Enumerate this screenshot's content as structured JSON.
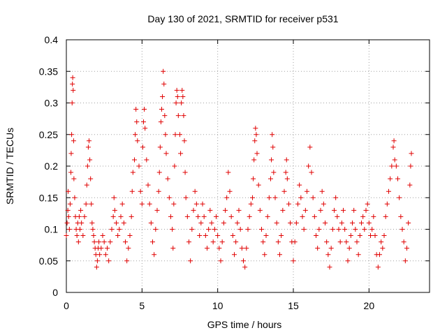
{
  "chart_data": {
    "type": "scatter",
    "title": "Day 130 of 2021, SRMTID for receiver p531",
    "xlabel": "GPS time / hours",
    "ylabel": "SRMTID / TECUs",
    "xlim": [
      0,
      24
    ],
    "ylim": [
      0,
      0.4
    ],
    "xticks": [
      0,
      5,
      10,
      15,
      20
    ],
    "yticks": [
      0,
      0.05,
      0.1,
      0.15,
      0.2,
      0.25,
      0.3,
      0.35,
      0.4
    ],
    "xtick_labels": [
      "0",
      "5",
      "10",
      "15",
      "20"
    ],
    "ytick_labels": [
      "0",
      "0.05",
      "0.1",
      "0.15",
      "0.2",
      "0.25",
      "0.3",
      "0.35",
      "0.4"
    ],
    "grid": true,
    "marker": "+",
    "color": "#e00000",
    "series": [
      {
        "name": "SRMTID",
        "points": [
          [
            0.0,
            0.09
          ],
          [
            0.05,
            0.11
          ],
          [
            0.1,
            0.13
          ],
          [
            0.12,
            0.16
          ],
          [
            0.15,
            0.12
          ],
          [
            0.2,
            0.1
          ],
          [
            0.25,
            0.14
          ],
          [
            0.3,
            0.19
          ],
          [
            0.32,
            0.22
          ],
          [
            0.35,
            0.25
          ],
          [
            0.38,
            0.3
          ],
          [
            0.4,
            0.33
          ],
          [
            0.42,
            0.34
          ],
          [
            0.45,
            0.32
          ],
          [
            0.48,
            0.24
          ],
          [
            0.5,
            0.18
          ],
          [
            0.55,
            0.15
          ],
          [
            0.6,
            0.12
          ],
          [
            0.65,
            0.1
          ],
          [
            0.7,
            0.09
          ],
          [
            0.75,
            0.11
          ],
          [
            0.8,
            0.08
          ],
          [
            0.85,
            0.12
          ],
          [
            0.9,
            0.1
          ],
          [
            0.95,
            0.13
          ],
          [
            1.0,
            0.11
          ],
          [
            1.1,
            0.09
          ],
          [
            1.2,
            0.12
          ],
          [
            1.3,
            0.14
          ],
          [
            1.35,
            0.17
          ],
          [
            1.4,
            0.2
          ],
          [
            1.45,
            0.23
          ],
          [
            1.5,
            0.24
          ],
          [
            1.55,
            0.21
          ],
          [
            1.6,
            0.18
          ],
          [
            1.65,
            0.14
          ],
          [
            1.7,
            0.11
          ],
          [
            1.75,
            0.1
          ],
          [
            1.8,
            0.09
          ],
          [
            1.85,
            0.08
          ],
          [
            1.9,
            0.07
          ],
          [
            1.95,
            0.06
          ],
          [
            2.0,
            0.04
          ],
          [
            2.05,
            0.05
          ],
          [
            2.1,
            0.07
          ],
          [
            2.15,
            0.08
          ],
          [
            2.2,
            0.06
          ],
          [
            2.3,
            0.07
          ],
          [
            2.4,
            0.09
          ],
          [
            2.5,
            0.08
          ],
          [
            2.6,
            0.06
          ],
          [
            2.7,
            0.07
          ],
          [
            2.8,
            0.05
          ],
          [
            2.9,
            0.08
          ],
          [
            3.0,
            0.1
          ],
          [
            3.1,
            0.12
          ],
          [
            3.15,
            0.15
          ],
          [
            3.2,
            0.13
          ],
          [
            3.3,
            0.11
          ],
          [
            3.4,
            0.09
          ],
          [
            3.5,
            0.1
          ],
          [
            3.6,
            0.12
          ],
          [
            3.7,
            0.14
          ],
          [
            3.8,
            0.11
          ],
          [
            3.9,
            0.08
          ],
          [
            4.0,
            0.05
          ],
          [
            4.1,
            0.07
          ],
          [
            4.2,
            0.09
          ],
          [
            4.3,
            0.12
          ],
          [
            4.35,
            0.16
          ],
          [
            4.4,
            0.19
          ],
          [
            4.5,
            0.21
          ],
          [
            4.55,
            0.25
          ],
          [
            4.6,
            0.29
          ],
          [
            4.65,
            0.27
          ],
          [
            4.7,
            0.24
          ],
          [
            4.8,
            0.2
          ],
          [
            4.9,
            0.16
          ],
          [
            5.0,
            0.14
          ],
          [
            5.05,
            0.23
          ],
          [
            5.1,
            0.27
          ],
          [
            5.15,
            0.29
          ],
          [
            5.2,
            0.26
          ],
          [
            5.3,
            0.21
          ],
          [
            5.4,
            0.17
          ],
          [
            5.5,
            0.14
          ],
          [
            5.6,
            0.11
          ],
          [
            5.7,
            0.08
          ],
          [
            5.8,
            0.06
          ],
          [
            5.9,
            0.1
          ],
          [
            6.0,
            0.13
          ],
          [
            6.1,
            0.16
          ],
          [
            6.15,
            0.19
          ],
          [
            6.2,
            0.23
          ],
          [
            6.25,
            0.27
          ],
          [
            6.3,
            0.29
          ],
          [
            6.35,
            0.31
          ],
          [
            6.4,
            0.35
          ],
          [
            6.45,
            0.33
          ],
          [
            6.5,
            0.28
          ],
          [
            6.55,
            0.25
          ],
          [
            6.6,
            0.22
          ],
          [
            6.7,
            0.18
          ],
          [
            6.8,
            0.15
          ],
          [
            6.9,
            0.12
          ],
          [
            7.0,
            0.1
          ],
          [
            7.05,
            0.07
          ],
          [
            7.1,
            0.14
          ],
          [
            7.15,
            0.2
          ],
          [
            7.2,
            0.25
          ],
          [
            7.25,
            0.3
          ],
          [
            7.3,
            0.32
          ],
          [
            7.35,
            0.31
          ],
          [
            7.4,
            0.28
          ],
          [
            7.5,
            0.25
          ],
          [
            7.55,
            0.22
          ],
          [
            7.6,
            0.3
          ],
          [
            7.65,
            0.32
          ],
          [
            7.7,
            0.31
          ],
          [
            7.75,
            0.28
          ],
          [
            7.8,
            0.24
          ],
          [
            7.85,
            0.19
          ],
          [
            7.9,
            0.15
          ],
          [
            8.0,
            0.12
          ],
          [
            8.1,
            0.08
          ],
          [
            8.2,
            0.05
          ],
          [
            8.3,
            0.1
          ],
          [
            8.4,
            0.13
          ],
          [
            8.5,
            0.16
          ],
          [
            8.6,
            0.14
          ],
          [
            8.7,
            0.12
          ],
          [
            8.8,
            0.09
          ],
          [
            8.9,
            0.11
          ],
          [
            9.0,
            0.14
          ],
          [
            9.1,
            0.12
          ],
          [
            9.2,
            0.09
          ],
          [
            9.3,
            0.07
          ],
          [
            9.4,
            0.1
          ],
          [
            9.5,
            0.13
          ],
          [
            9.6,
            0.11
          ],
          [
            9.7,
            0.08
          ],
          [
            9.8,
            0.1
          ],
          [
            9.9,
            0.12
          ],
          [
            10.0,
            0.09
          ],
          [
            10.1,
            0.07
          ],
          [
            10.2,
            0.05
          ],
          [
            10.3,
            0.08
          ],
          [
            10.4,
            0.11
          ],
          [
            10.5,
            0.13
          ],
          [
            10.6,
            0.15
          ],
          [
            10.7,
            0.19
          ],
          [
            10.8,
            0.16
          ],
          [
            10.9,
            0.12
          ],
          [
            11.0,
            0.09
          ],
          [
            11.1,
            0.06
          ],
          [
            11.2,
            0.08
          ],
          [
            11.3,
            0.11
          ],
          [
            11.4,
            0.13
          ],
          [
            11.5,
            0.1
          ],
          [
            11.6,
            0.07
          ],
          [
            11.7,
            0.05
          ],
          [
            11.8,
            0.04
          ],
          [
            11.9,
            0.07
          ],
          [
            12.0,
            0.1
          ],
          [
            12.1,
            0.12
          ],
          [
            12.2,
            0.14
          ],
          [
            12.3,
            0.15
          ],
          [
            12.35,
            0.18
          ],
          [
            12.4,
            0.21
          ],
          [
            12.45,
            0.24
          ],
          [
            12.5,
            0.26
          ],
          [
            12.55,
            0.25
          ],
          [
            12.6,
            0.22
          ],
          [
            12.7,
            0.17
          ],
          [
            12.8,
            0.13
          ],
          [
            12.9,
            0.1
          ],
          [
            13.0,
            0.08
          ],
          [
            13.1,
            0.06
          ],
          [
            13.2,
            0.09
          ],
          [
            13.3,
            0.12
          ],
          [
            13.4,
            0.15
          ],
          [
            13.5,
            0.18
          ],
          [
            13.55,
            0.21
          ],
          [
            13.6,
            0.25
          ],
          [
            13.65,
            0.23
          ],
          [
            13.7,
            0.19
          ],
          [
            13.8,
            0.15
          ],
          [
            13.9,
            0.11
          ],
          [
            14.0,
            0.08
          ],
          [
            14.1,
            0.06
          ],
          [
            14.2,
            0.09
          ],
          [
            14.3,
            0.13
          ],
          [
            14.4,
            0.16
          ],
          [
            14.5,
            0.19
          ],
          [
            14.55,
            0.21
          ],
          [
            14.6,
            0.18
          ],
          [
            14.7,
            0.14
          ],
          [
            14.8,
            0.11
          ],
          [
            14.9,
            0.08
          ],
          [
            15.0,
            0.05
          ],
          [
            15.1,
            0.08
          ],
          [
            15.2,
            0.11
          ],
          [
            15.3,
            0.14
          ],
          [
            15.4,
            0.17
          ],
          [
            15.5,
            0.15
          ],
          [
            15.6,
            0.12
          ],
          [
            15.7,
            0.1
          ],
          [
            15.8,
            0.13
          ],
          [
            15.9,
            0.16
          ],
          [
            16.0,
            0.2
          ],
          [
            16.1,
            0.23
          ],
          [
            16.2,
            0.19
          ],
          [
            16.3,
            0.15
          ],
          [
            16.4,
            0.12
          ],
          [
            16.5,
            0.09
          ],
          [
            16.6,
            0.07
          ],
          [
            16.7,
            0.1
          ],
          [
            16.8,
            0.13
          ],
          [
            16.9,
            0.16
          ],
          [
            17.0,
            0.14
          ],
          [
            17.1,
            0.11
          ],
          [
            17.2,
            0.08
          ],
          [
            17.3,
            0.06
          ],
          [
            17.4,
            0.04
          ],
          [
            17.5,
            0.07
          ],
          [
            17.6,
            0.1
          ],
          [
            17.7,
            0.13
          ],
          [
            17.8,
            0.15
          ],
          [
            17.9,
            0.12
          ],
          [
            18.0,
            0.1
          ],
          [
            18.1,
            0.08
          ],
          [
            18.2,
            0.11
          ],
          [
            18.3,
            0.13
          ],
          [
            18.4,
            0.1
          ],
          [
            18.5,
            0.08
          ],
          [
            18.6,
            0.05
          ],
          [
            18.7,
            0.07
          ],
          [
            18.8,
            0.09
          ],
          [
            18.9,
            0.11
          ],
          [
            19.0,
            0.13
          ],
          [
            19.1,
            0.1
          ],
          [
            19.2,
            0.08
          ],
          [
            19.3,
            0.06
          ],
          [
            19.4,
            0.09
          ],
          [
            19.5,
            0.11
          ],
          [
            19.6,
            0.12
          ],
          [
            19.7,
            0.1
          ],
          [
            19.8,
            0.13
          ],
          [
            19.9,
            0.14
          ],
          [
            20.0,
            0.11
          ],
          [
            20.1,
            0.09
          ],
          [
            20.2,
            0.1
          ],
          [
            20.3,
            0.12
          ],
          [
            20.4,
            0.09
          ],
          [
            20.5,
            0.06
          ],
          [
            20.6,
            0.04
          ],
          [
            20.7,
            0.06
          ],
          [
            20.8,
            0.08
          ],
          [
            20.9,
            0.07
          ],
          [
            21.0,
            0.09
          ],
          [
            21.1,
            0.12
          ],
          [
            21.2,
            0.14
          ],
          [
            21.3,
            0.16
          ],
          [
            21.4,
            0.18
          ],
          [
            21.5,
            0.2
          ],
          [
            21.6,
            0.23
          ],
          [
            21.65,
            0.24
          ],
          [
            21.7,
            0.21
          ],
          [
            21.8,
            0.2
          ],
          [
            21.9,
            0.18
          ],
          [
            22.0,
            0.15
          ],
          [
            22.1,
            0.12
          ],
          [
            22.2,
            0.1
          ],
          [
            22.3,
            0.08
          ],
          [
            22.4,
            0.05
          ],
          [
            22.5,
            0.07
          ],
          [
            22.6,
            0.11
          ],
          [
            22.7,
            0.17
          ],
          [
            22.75,
            0.2
          ],
          [
            22.8,
            0.22
          ]
        ]
      }
    ]
  }
}
